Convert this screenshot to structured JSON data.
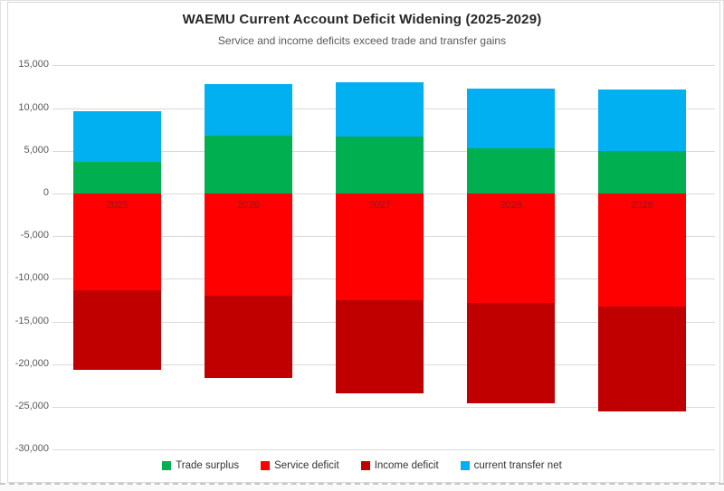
{
  "header": {
    "title": "WAEMU Current Account Deficit Widening (2025-2029)",
    "subtitle": "Service and income deficits exceed trade and transfer gains"
  },
  "colors": {
    "trade_surplus": "#00b050",
    "service_deficit": "#ff0000",
    "income_deficit": "#c00000",
    "current_transfer_net": "#00b0f0",
    "gridline": "#d9d9d9",
    "axis_text": "#595959",
    "title_text": "#262626",
    "year_label_text": "#8b1a1a"
  },
  "chart_data": {
    "type": "bar",
    "stacked": true,
    "title": "WAEMU Current Account Deficit Widening (2025-2029)",
    "subtitle": "Service and income deficits exceed trade and transfer gains",
    "xlabel": "",
    "ylabel": "",
    "categories": [
      "2025",
      "2026",
      "2027",
      "2028",
      "2029"
    ],
    "series": [
      {
        "name": "Trade surplus",
        "color": "#00b050",
        "values": [
          3700,
          6800,
          6700,
          5300,
          5000
        ]
      },
      {
        "name": "Service deficit",
        "color": "#ff0000",
        "values": [
          -11300,
          -12000,
          -12500,
          -12800,
          -13200
        ]
      },
      {
        "name": "Income deficit",
        "color": "#c00000",
        "values": [
          -9400,
          -9600,
          -10900,
          -11800,
          -12300
        ]
      },
      {
        "name": "current transfer net",
        "color": "#00b0f0",
        "values": [
          5900,
          6000,
          6300,
          7000,
          7200
        ]
      }
    ],
    "stack_totals_positive": [
      9600,
      12800,
      13000,
      12300,
      12200
    ],
    "stack_totals_negative": [
      -20700,
      -21600,
      -23400,
      -24600,
      -25500
    ],
    "ylim": [
      -30000,
      15000
    ],
    "ytick_step": 5000,
    "ytick_labels": [
      "15,000",
      "10,000",
      "5,000",
      "0",
      "-5,000",
      "-10,000",
      "-15,000",
      "-20,000",
      "-25,000",
      "-30,000"
    ],
    "grid": true,
    "legend_position": "bottom"
  }
}
